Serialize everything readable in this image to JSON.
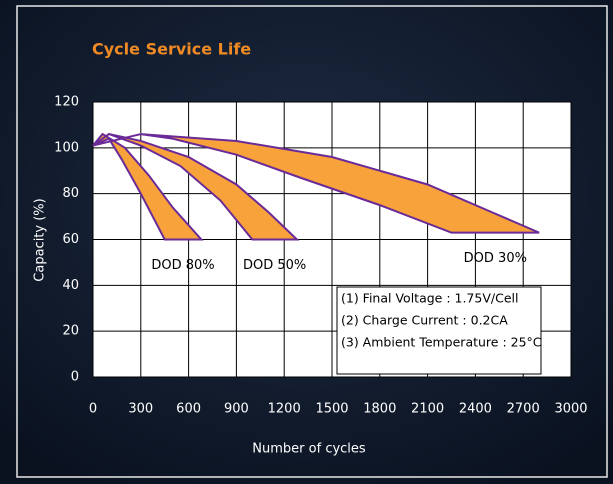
{
  "chart_data": {
    "type": "range_area",
    "title": "Cycle Service Life",
    "xlabel": "Number of cycles",
    "ylabel": "Capacity (%)",
    "xlim": [
      0,
      3000
    ],
    "xticks": [
      0,
      300,
      600,
      900,
      1200,
      1500,
      1800,
      2100,
      2400,
      2700,
      3000
    ],
    "ylim": [
      0,
      120
    ],
    "yticks": [
      0,
      20,
      40,
      60,
      80,
      100,
      120
    ],
    "grid": true,
    "series": [
      {
        "name": "DOD 80%",
        "color": "#f7a23b",
        "edge_color": "#6a2a98",
        "x": [
          0,
          60,
          200,
          350,
          500,
          680,
          450,
          300,
          180,
          100,
          0
        ],
        "values": [
          101,
          106,
          100,
          88,
          74,
          60,
          60,
          80,
          95,
          104,
          101
        ]
      },
      {
        "name": "DOD 50%",
        "color": "#f7a23b",
        "edge_color": "#6a2a98",
        "x": [
          0,
          100,
          300,
          600,
          900,
          1100,
          1280,
          1000,
          800,
          550,
          300,
          100
        ],
        "values": [
          101,
          106,
          103,
          96,
          84,
          72,
          60,
          60,
          77,
          92,
          101,
          106
        ]
      },
      {
        "name": "DOD 30%",
        "color": "#f7a23b",
        "edge_color": "#6a2a98",
        "x": [
          0,
          300,
          900,
          1500,
          2100,
          2500,
          2800,
          2250,
          1800,
          1300,
          900,
          500,
          300
        ],
        "values": [
          101,
          106,
          103,
          96,
          84,
          72,
          63,
          63,
          75,
          87,
          97,
          104,
          106
        ]
      }
    ],
    "annotations": [
      "(1) Final Voltage : 1.75V/Cell",
      "(2) Charge Current : 0.2CA",
      "(3) Ambient Temperature : 25°C"
    ]
  }
}
